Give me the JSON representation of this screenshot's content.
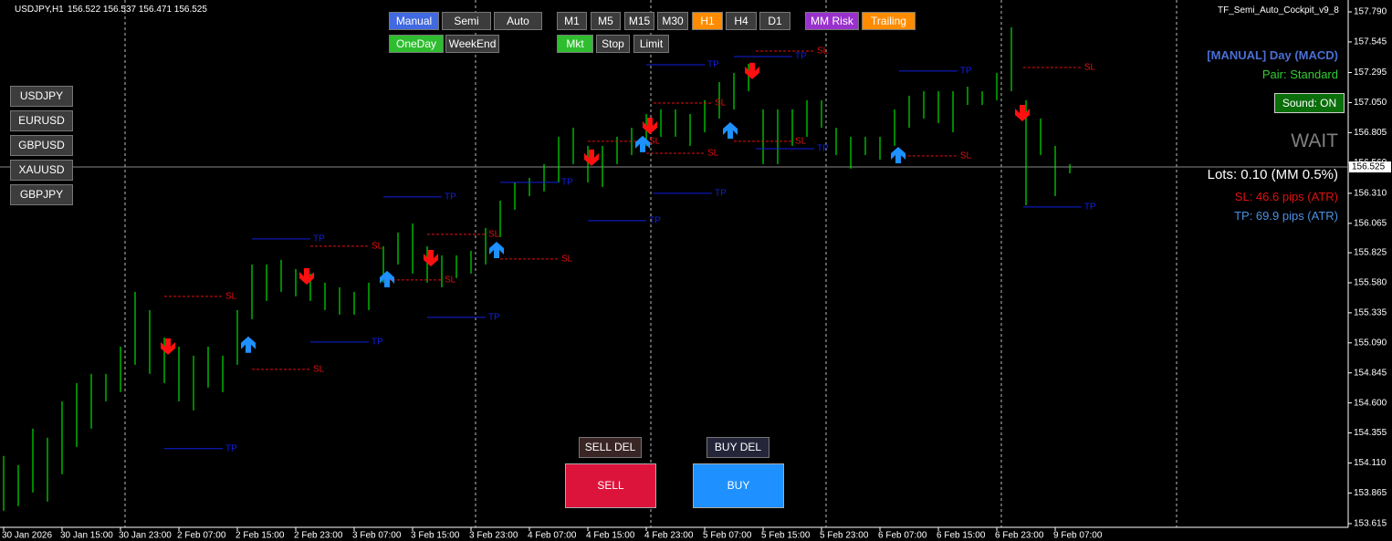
{
  "header": {
    "title": "USDJPY,H1",
    "quote": "156.522 156.537 156.471 156.525",
    "expert": "TF_Semi_Auto_Cockpit_v9_8"
  },
  "toolbar": {
    "mode": [
      "Manual",
      "Semi",
      "Auto"
    ],
    "session": [
      "OneDay",
      "WeekEnd"
    ],
    "timeframes": [
      "M1",
      "M5",
      "M15",
      "M30",
      "H1",
      "H4",
      "D1"
    ],
    "order_type": [
      "Mkt",
      "Stop",
      "Limit"
    ],
    "extras": [
      "MM Risk",
      "Trailing"
    ]
  },
  "symbols": [
    "USDJPY",
    "EURUSD",
    "GBPUSD",
    "XAUUSD",
    "GBPJPY"
  ],
  "panel": {
    "status": "[MANUAL] Day (MACD)",
    "pair": "Pair: Standard",
    "sound": "Sound: ON",
    "signal": "WAIT",
    "lots": "Lots: 0.10 (MM 0.5%)",
    "sl": "SL: 46.6 pips (ATR)",
    "tp": "TP: 69.9 pips (ATR)"
  },
  "order_buttons": {
    "sell_del": "SELL DEL",
    "buy_del": "BUY DEL",
    "sell": "SELL",
    "buy": "BUY"
  },
  "chart_data": {
    "type": "ohlc",
    "color": "#00e000",
    "highs": [
      154.167,
      154.092,
      154.39,
      154.316,
      154.613,
      154.762,
      154.837,
      154.837,
      155.06,
      155.506,
      155.357,
      155.134,
      155.06,
      154.985,
      155.06,
      154.985,
      155.357,
      155.729,
      155.729,
      155.767,
      155.692,
      155.655,
      155.581,
      155.543,
      155.506,
      155.581,
      155.878,
      155.99,
      156.064,
      155.878,
      155.804,
      155.804,
      155.841,
      156.027,
      156.25,
      156.399,
      156.436,
      156.548,
      156.771,
      156.845,
      156.697,
      156.697,
      156.771,
      156.845,
      156.957,
      156.994,
      156.994,
      156.957,
      157.069,
      157.217,
      157.292,
      157.366,
      156.994,
      156.994,
      156.994,
      157.069,
      157.069,
      156.845,
      156.771,
      156.771,
      156.771,
      156.994,
      157.106,
      157.143,
      157.143,
      157.143,
      157.18,
      157.143,
      157.292,
      157.664,
      157.069,
      156.92,
      156.697,
      156.548
    ],
    "lows": [
      153.72,
      153.758,
      153.869,
      153.795,
      154.018,
      154.241,
      154.39,
      154.613,
      154.688,
      154.911,
      154.837,
      154.762,
      154.613,
      154.539,
      154.725,
      154.688,
      154.911,
      155.283,
      155.432,
      155.506,
      155.469,
      155.432,
      155.357,
      155.32,
      155.32,
      155.357,
      155.581,
      155.729,
      155.655,
      155.581,
      155.543,
      155.618,
      155.655,
      155.729,
      155.953,
      156.176,
      156.287,
      156.325,
      156.399,
      156.548,
      156.399,
      156.362,
      156.548,
      156.622,
      156.697,
      156.771,
      156.771,
      156.697,
      156.808,
      156.92,
      156.994,
      157.143,
      156.548,
      156.548,
      156.697,
      156.771,
      156.845,
      156.622,
      156.511,
      156.622,
      156.585,
      156.697,
      156.845,
      156.92,
      156.883,
      156.808,
      157.031,
      157.031,
      157.069,
      157.143,
      156.213,
      156.622,
      156.287,
      156.473
    ],
    "xlim": [
      -0.25,
      92.06
    ],
    "xticks": [
      {
        "value": 0,
        "label": "30 Jan 2026"
      },
      {
        "value": 4,
        "label": "30 Jan 15:00"
      },
      {
        "value": 8,
        "label": "30 Jan 23:00"
      },
      {
        "value": 12,
        "label": "2 Feb 07:00"
      },
      {
        "value": 16,
        "label": "2 Feb 15:00"
      },
      {
        "value": 20,
        "label": "2 Feb 23:00"
      },
      {
        "value": 24,
        "label": "3 Feb 07:00"
      },
      {
        "value": 28,
        "label": "3 Feb 15:00"
      },
      {
        "value": 32,
        "label": "3 Feb 23:00"
      },
      {
        "value": 36,
        "label": "4 Feb 07:00"
      },
      {
        "value": 40,
        "label": "4 Feb 15:00"
      },
      {
        "value": 44,
        "label": "4 Feb 23:00"
      },
      {
        "value": 48,
        "label": "5 Feb 07:00"
      },
      {
        "value": 52,
        "label": "5 Feb 15:00"
      },
      {
        "value": 56,
        "label": "5 Feb 23:00"
      },
      {
        "value": 60,
        "label": "6 Feb 07:00"
      },
      {
        "value": 64,
        "label": "6 Feb 15:00"
      },
      {
        "value": 68,
        "label": "6 Feb 23:00"
      },
      {
        "value": 72,
        "label": "9 Feb 07:00"
      }
    ],
    "ylim": [
      153.585,
      157.887
    ],
    "yticks": [
      {
        "value": 157.79,
        "label": "157.790"
      },
      {
        "value": 157.545,
        "label": "157.545"
      },
      {
        "value": 157.295,
        "label": "157.295"
      },
      {
        "value": 157.05,
        "label": "157.050"
      },
      {
        "value": 156.805,
        "label": "156.805"
      },
      {
        "value": 156.56,
        "label": "156.560"
      },
      {
        "value": 156.31,
        "label": "156.310"
      },
      {
        "value": 156.065,
        "label": "156.065"
      },
      {
        "value": 155.825,
        "label": "155.825"
      },
      {
        "value": 155.58,
        "label": "155.580"
      },
      {
        "value": 155.335,
        "label": "155.335"
      },
      {
        "value": 155.09,
        "label": "155.090"
      },
      {
        "value": 154.845,
        "label": "154.845"
      },
      {
        "value": 154.6,
        "label": "154.600"
      },
      {
        "value": 154.355,
        "label": "154.355"
      },
      {
        "value": 154.11,
        "label": "154.110"
      },
      {
        "value": 153.865,
        "label": "153.865"
      },
      {
        "value": 153.615,
        "label": "153.615"
      }
    ],
    "current_price": {
      "value": 156.525,
      "label": "156.525"
    },
    "levels": [
      {
        "label": "SL",
        "value": 155.469,
        "from": 11,
        "to": 15,
        "color": "#e01010"
      },
      {
        "label": "TP",
        "value": 154.227,
        "from": 11,
        "to": 15,
        "color": "#1020e0"
      },
      {
        "label": "TP",
        "value": 155.938,
        "from": 17,
        "to": 21,
        "color": "#1020e0"
      },
      {
        "label": "SL",
        "value": 154.874,
        "from": 17,
        "to": 21,
        "color": "#e01010"
      },
      {
        "label": "SL",
        "value": 155.878,
        "from": 21,
        "to": 25,
        "color": "#e01010"
      },
      {
        "label": "TP",
        "value": 155.097,
        "from": 21,
        "to": 25,
        "color": "#1020e0"
      },
      {
        "label": "TP",
        "value": 156.28,
        "from": 26,
        "to": 30,
        "color": "#1020e0"
      },
      {
        "label": "SL",
        "value": 155.603,
        "from": 26,
        "to": 30,
        "color": "#e01010"
      },
      {
        "label": "SL",
        "value": 155.975,
        "from": 29,
        "to": 33,
        "color": "#e01010"
      },
      {
        "label": "TP",
        "value": 155.298,
        "from": 29,
        "to": 33,
        "color": "#1020e0"
      },
      {
        "label": "TP",
        "value": 156.399,
        "from": 34,
        "to": 38,
        "color": "#1020e0"
      },
      {
        "label": "SL",
        "value": 155.774,
        "from": 34,
        "to": 38,
        "color": "#e01010"
      },
      {
        "label": "SL",
        "value": 156.734,
        "from": 40,
        "to": 44,
        "color": "#e01010"
      },
      {
        "label": "TP",
        "value": 156.087,
        "from": 40,
        "to": 44,
        "color": "#1020e0"
      },
      {
        "label": "TP",
        "value": 157.359,
        "from": 44,
        "to": 48,
        "color": "#1020e0"
      },
      {
        "label": "SL",
        "value": 156.637,
        "from": 44,
        "to": 48,
        "color": "#e01010"
      },
      {
        "label": "SL",
        "value": 157.046,
        "from": 44.5,
        "to": 48.5,
        "color": "#e01010"
      },
      {
        "label": "TP",
        "value": 156.31,
        "from": 44.5,
        "to": 48.5,
        "color": "#1020e0"
      },
      {
        "label": "TP",
        "value": 157.426,
        "from": 50,
        "to": 54,
        "color": "#1020e0"
      },
      {
        "label": "SL",
        "value": 156.734,
        "from": 50,
        "to": 54,
        "color": "#e01010"
      },
      {
        "label": "SL",
        "value": 157.47,
        "from": 51.5,
        "to": 55.5,
        "color": "#e01010"
      },
      {
        "label": "TP",
        "value": 156.674,
        "from": 51.5,
        "to": 55.5,
        "color": "#1020e0"
      },
      {
        "label": "TP",
        "value": 157.307,
        "from": 61.3,
        "to": 65.3,
        "color": "#1020e0"
      },
      {
        "label": "SL",
        "value": 156.615,
        "from": 61.3,
        "to": 65.3,
        "color": "#e01010"
      },
      {
        "label": "SL",
        "value": 157.336,
        "from": 69.8,
        "to": 73.8,
        "color": "#e01010"
      },
      {
        "label": "TP",
        "value": 156.198,
        "from": 69.8,
        "to": 73.8,
        "color": "#1020e0"
      }
    ],
    "signals": [
      {
        "dir": "sell",
        "bar": 11.25,
        "value": 155.06,
        "color": "#ff1010"
      },
      {
        "dir": "sell",
        "bar": 20.75,
        "value": 155.632,
        "color": "#ff1010"
      },
      {
        "dir": "sell",
        "bar": 29.25,
        "value": 155.781,
        "color": "#ff1010"
      },
      {
        "dir": "sell",
        "bar": 40.25,
        "value": 156.6,
        "color": "#ff1010"
      },
      {
        "dir": "sell",
        "bar": 44.25,
        "value": 156.86,
        "color": "#ff1010"
      },
      {
        "dir": "sell",
        "bar": 51.25,
        "value": 157.307,
        "color": "#ff1010"
      },
      {
        "dir": "sell",
        "bar": 69.75,
        "value": 156.964,
        "color": "#ff1010"
      },
      {
        "dir": "buy",
        "bar": 16.75,
        "value": 155.075,
        "color": "#1e90ff"
      },
      {
        "dir": "buy",
        "bar": 26.25,
        "value": 155.61,
        "color": "#1e90ff"
      },
      {
        "dir": "buy",
        "bar": 33.75,
        "value": 155.848,
        "color": "#1e90ff"
      },
      {
        "dir": "buy",
        "bar": 43.75,
        "value": 156.712,
        "color": "#1e90ff"
      },
      {
        "dir": "buy",
        "bar": 49.75,
        "value": 156.823,
        "color": "#1e90ff"
      },
      {
        "dir": "buy",
        "bar": 61.25,
        "value": 156.622,
        "color": "#1e90ff"
      }
    ]
  }
}
